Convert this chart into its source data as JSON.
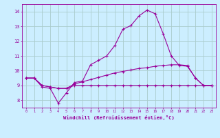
{
  "xlabel": "Windchill (Refroidissement éolien,°C)",
  "background_color": "#cceeff",
  "grid_color": "#aacccc",
  "line_color": "#990099",
  "x_hours": [
    0,
    1,
    2,
    3,
    4,
    5,
    6,
    7,
    8,
    9,
    10,
    11,
    12,
    13,
    14,
    15,
    16,
    17,
    18,
    19,
    20,
    21,
    22,
    23
  ],
  "series1": [
    9.5,
    9.5,
    8.9,
    8.8,
    7.8,
    8.5,
    9.2,
    9.3,
    10.4,
    10.7,
    11.0,
    11.7,
    12.8,
    13.05,
    13.7,
    14.1,
    13.85,
    12.5,
    11.0,
    10.35,
    10.3,
    9.5,
    9.0,
    9.0
  ],
  "series2": [
    9.5,
    9.5,
    9.0,
    8.9,
    8.8,
    8.8,
    9.1,
    9.25,
    9.4,
    9.55,
    9.7,
    9.85,
    9.95,
    10.05,
    10.15,
    10.2,
    10.3,
    10.35,
    10.4,
    10.4,
    10.35,
    9.5,
    9.0,
    9.0
  ],
  "series3": [
    9.5,
    9.5,
    9.0,
    8.9,
    8.8,
    8.8,
    9.0,
    9.0,
    9.0,
    9.0,
    9.0,
    9.0,
    9.0,
    9.0,
    9.0,
    9.0,
    9.0,
    9.0,
    9.0,
    9.0,
    9.0,
    9.0,
    9.0,
    9.0
  ],
  "ylim": [
    7.5,
    14.5
  ],
  "yticks": [
    8,
    9,
    10,
    11,
    12,
    13,
    14
  ],
  "xlim": [
    -0.5,
    23.5
  ]
}
